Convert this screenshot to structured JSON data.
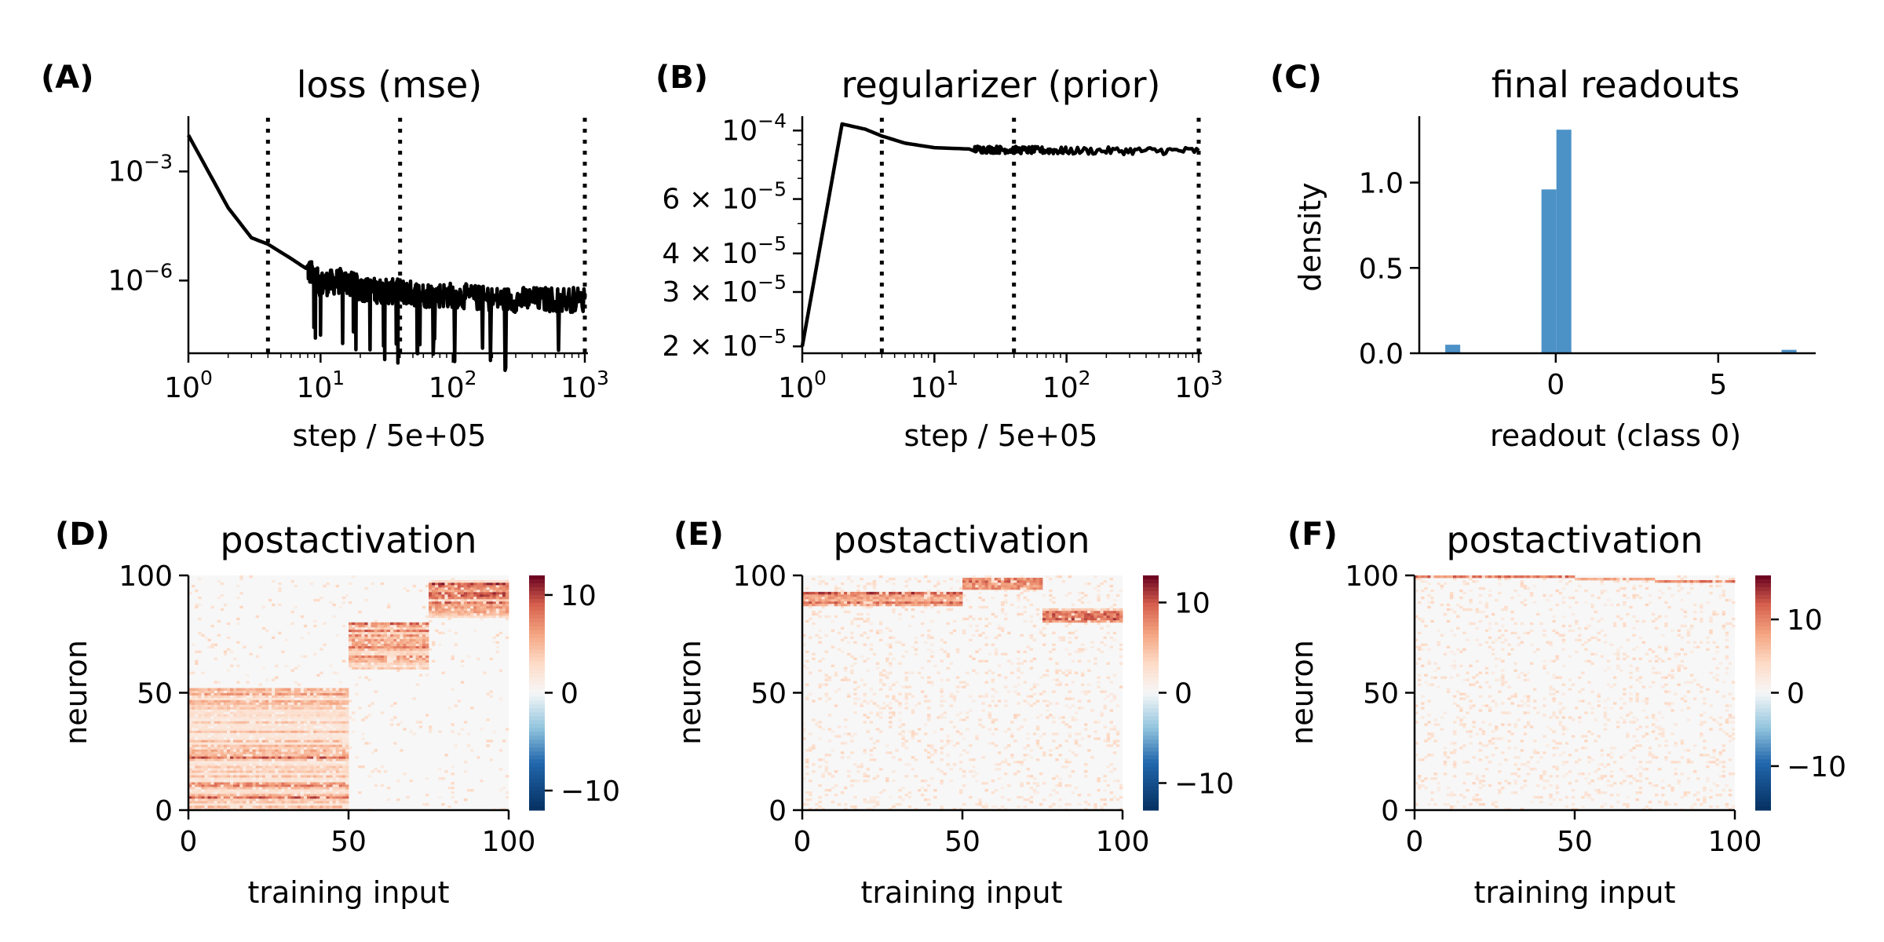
{
  "chart_data": [
    {
      "panel": "(A)",
      "type": "line",
      "title": "loss (mse)",
      "xlabel": "step / 5e+05",
      "ylabel": "",
      "xscale": "log",
      "yscale": "log",
      "xlim": [
        1,
        1000
      ],
      "ylim": [
        1e-08,
        0.03
      ],
      "xticks": [
        {
          "base": "10",
          "exp": "0",
          "v": 1
        },
        {
          "base": "10",
          "exp": "1",
          "v": 10
        },
        {
          "base": "10",
          "exp": "2",
          "v": 100
        },
        {
          "base": "10",
          "exp": "3",
          "v": 1000
        }
      ],
      "yticks": [
        {
          "base": "10",
          "exp": "−3",
          "v": 0.001
        },
        {
          "base": "10",
          "exp": "−6",
          "v": 1e-06
        }
      ],
      "vlines": [
        4,
        40,
        1000
      ],
      "series": [
        {
          "name": "loss",
          "x": [
            1,
            2,
            3,
            4,
            6,
            8,
            10,
            15,
            20,
            30,
            40,
            60,
            100,
            200,
            400,
            1000
          ],
          "y": [
            0.01,
            0.0001,
            1.5e-05,
            1e-05,
            4e-06,
            2e-06,
            8e-07,
            1e-06,
            6e-07,
            5e-07,
            5e-07,
            4e-07,
            4e-07,
            3e-07,
            3e-07,
            3e-07
          ],
          "noise_from": 8
        }
      ]
    },
    {
      "panel": "(B)",
      "type": "line",
      "title": "regularizer (prior)",
      "xlabel": "step / 5e+05",
      "ylabel": "",
      "xscale": "log",
      "yscale": "log",
      "xlim": [
        1,
        1000
      ],
      "ylim": [
        1.9e-05,
        0.00011
      ],
      "xticks": [
        {
          "base": "10",
          "exp": "0",
          "v": 1
        },
        {
          "base": "10",
          "exp": "1",
          "v": 10
        },
        {
          "base": "10",
          "exp": "2",
          "v": 100
        },
        {
          "base": "10",
          "exp": "3",
          "v": 1000
        }
      ],
      "yticks": [
        {
          "base": "10",
          "exp": "−4",
          "v": 0.0001
        },
        {
          "base": "6 × 10",
          "exp": "−5",
          "v": 6e-05
        },
        {
          "base": "4 × 10",
          "exp": "−5",
          "v": 4e-05
        },
        {
          "base": "3 × 10",
          "exp": "−5",
          "v": 3e-05
        },
        {
          "base": "2 × 10",
          "exp": "−5",
          "v": 2e-05
        }
      ],
      "vlines": [
        4,
        40,
        1000
      ],
      "series": [
        {
          "name": "regularizer",
          "x": [
            1,
            2,
            3,
            4,
            6,
            10,
            20,
            40,
            100,
            1000
          ],
          "y": [
            2e-05,
            0.000105,
            0.000101,
            9.6e-05,
            9.1e-05,
            8.8e-05,
            8.7e-05,
            8.65e-05,
            8.6e-05,
            8.6e-05
          ],
          "noise_from": 20
        }
      ]
    },
    {
      "panel": "(C)",
      "type": "bar",
      "title": "final readouts",
      "xlabel": "readout (class 0)",
      "ylabel": "density",
      "xlim": [
        -4.2,
        8.0
      ],
      "ylim": [
        0,
        1.38
      ],
      "xticks": [
        0,
        5
      ],
      "yticks": [
        "0.0",
        "0.5",
        "1.0"
      ],
      "bin_width": 0.46,
      "bins": [
        {
          "x0": -3.4,
          "h": 0.05
        },
        {
          "x0": -0.44,
          "h": 0.96
        },
        {
          "x0": 0.02,
          "h": 1.31
        },
        {
          "x0": 6.95,
          "h": 0.02
        }
      ],
      "color": "#4c92c7"
    },
    {
      "panel": "(D)",
      "type": "heatmap",
      "title": "postactivation",
      "xlabel": "training input",
      "ylabel": "neuron",
      "xticks": [
        0,
        50,
        100
      ],
      "yticks": [
        0,
        50,
        100
      ],
      "colorbar": {
        "ticks": [
          10,
          0,
          -10
        ],
        "vmax": 12
      },
      "blocks": [
        {
          "x": [
            0,
            50
          ],
          "y": [
            0,
            52
          ],
          "level": 0.35
        },
        {
          "x": [
            50,
            75
          ],
          "y": [
            60,
            80
          ],
          "level": 0.55
        },
        {
          "x": [
            75,
            100
          ],
          "y": [
            82,
            98
          ],
          "level": 0.65
        }
      ]
    },
    {
      "panel": "(E)",
      "type": "heatmap",
      "title": "postactivation",
      "xlabel": "training input",
      "ylabel": "neuron",
      "xticks": [
        0,
        50,
        100
      ],
      "yticks": [
        0,
        50,
        100
      ],
      "colorbar": {
        "ticks": [
          10,
          0,
          -10
        ],
        "vmax": 13
      },
      "blocks": [
        {
          "x": [
            0,
            50
          ],
          "y": [
            87,
            93
          ],
          "level": 0.6
        },
        {
          "x": [
            50,
            75
          ],
          "y": [
            94,
            99
          ],
          "level": 0.75
        },
        {
          "x": [
            75,
            100
          ],
          "y": [
            80,
            86
          ],
          "level": 0.65
        }
      ]
    },
    {
      "panel": "(F)",
      "type": "heatmap",
      "title": "postactivation",
      "xlabel": "training input",
      "ylabel": "neuron",
      "xticks": [
        0,
        50,
        100
      ],
      "yticks": [
        0,
        50,
        100
      ],
      "colorbar": {
        "ticks": [
          10,
          0,
          -10
        ],
        "vmax": 16
      },
      "blocks": [
        {
          "x": [
            0,
            50
          ],
          "y": [
            99,
            100
          ],
          "level": 0.85
        },
        {
          "x": [
            50,
            75
          ],
          "y": [
            98,
            99
          ],
          "level": 0.85
        },
        {
          "x": [
            75,
            100
          ],
          "y": [
            97,
            98
          ],
          "level": 0.85
        }
      ]
    }
  ]
}
